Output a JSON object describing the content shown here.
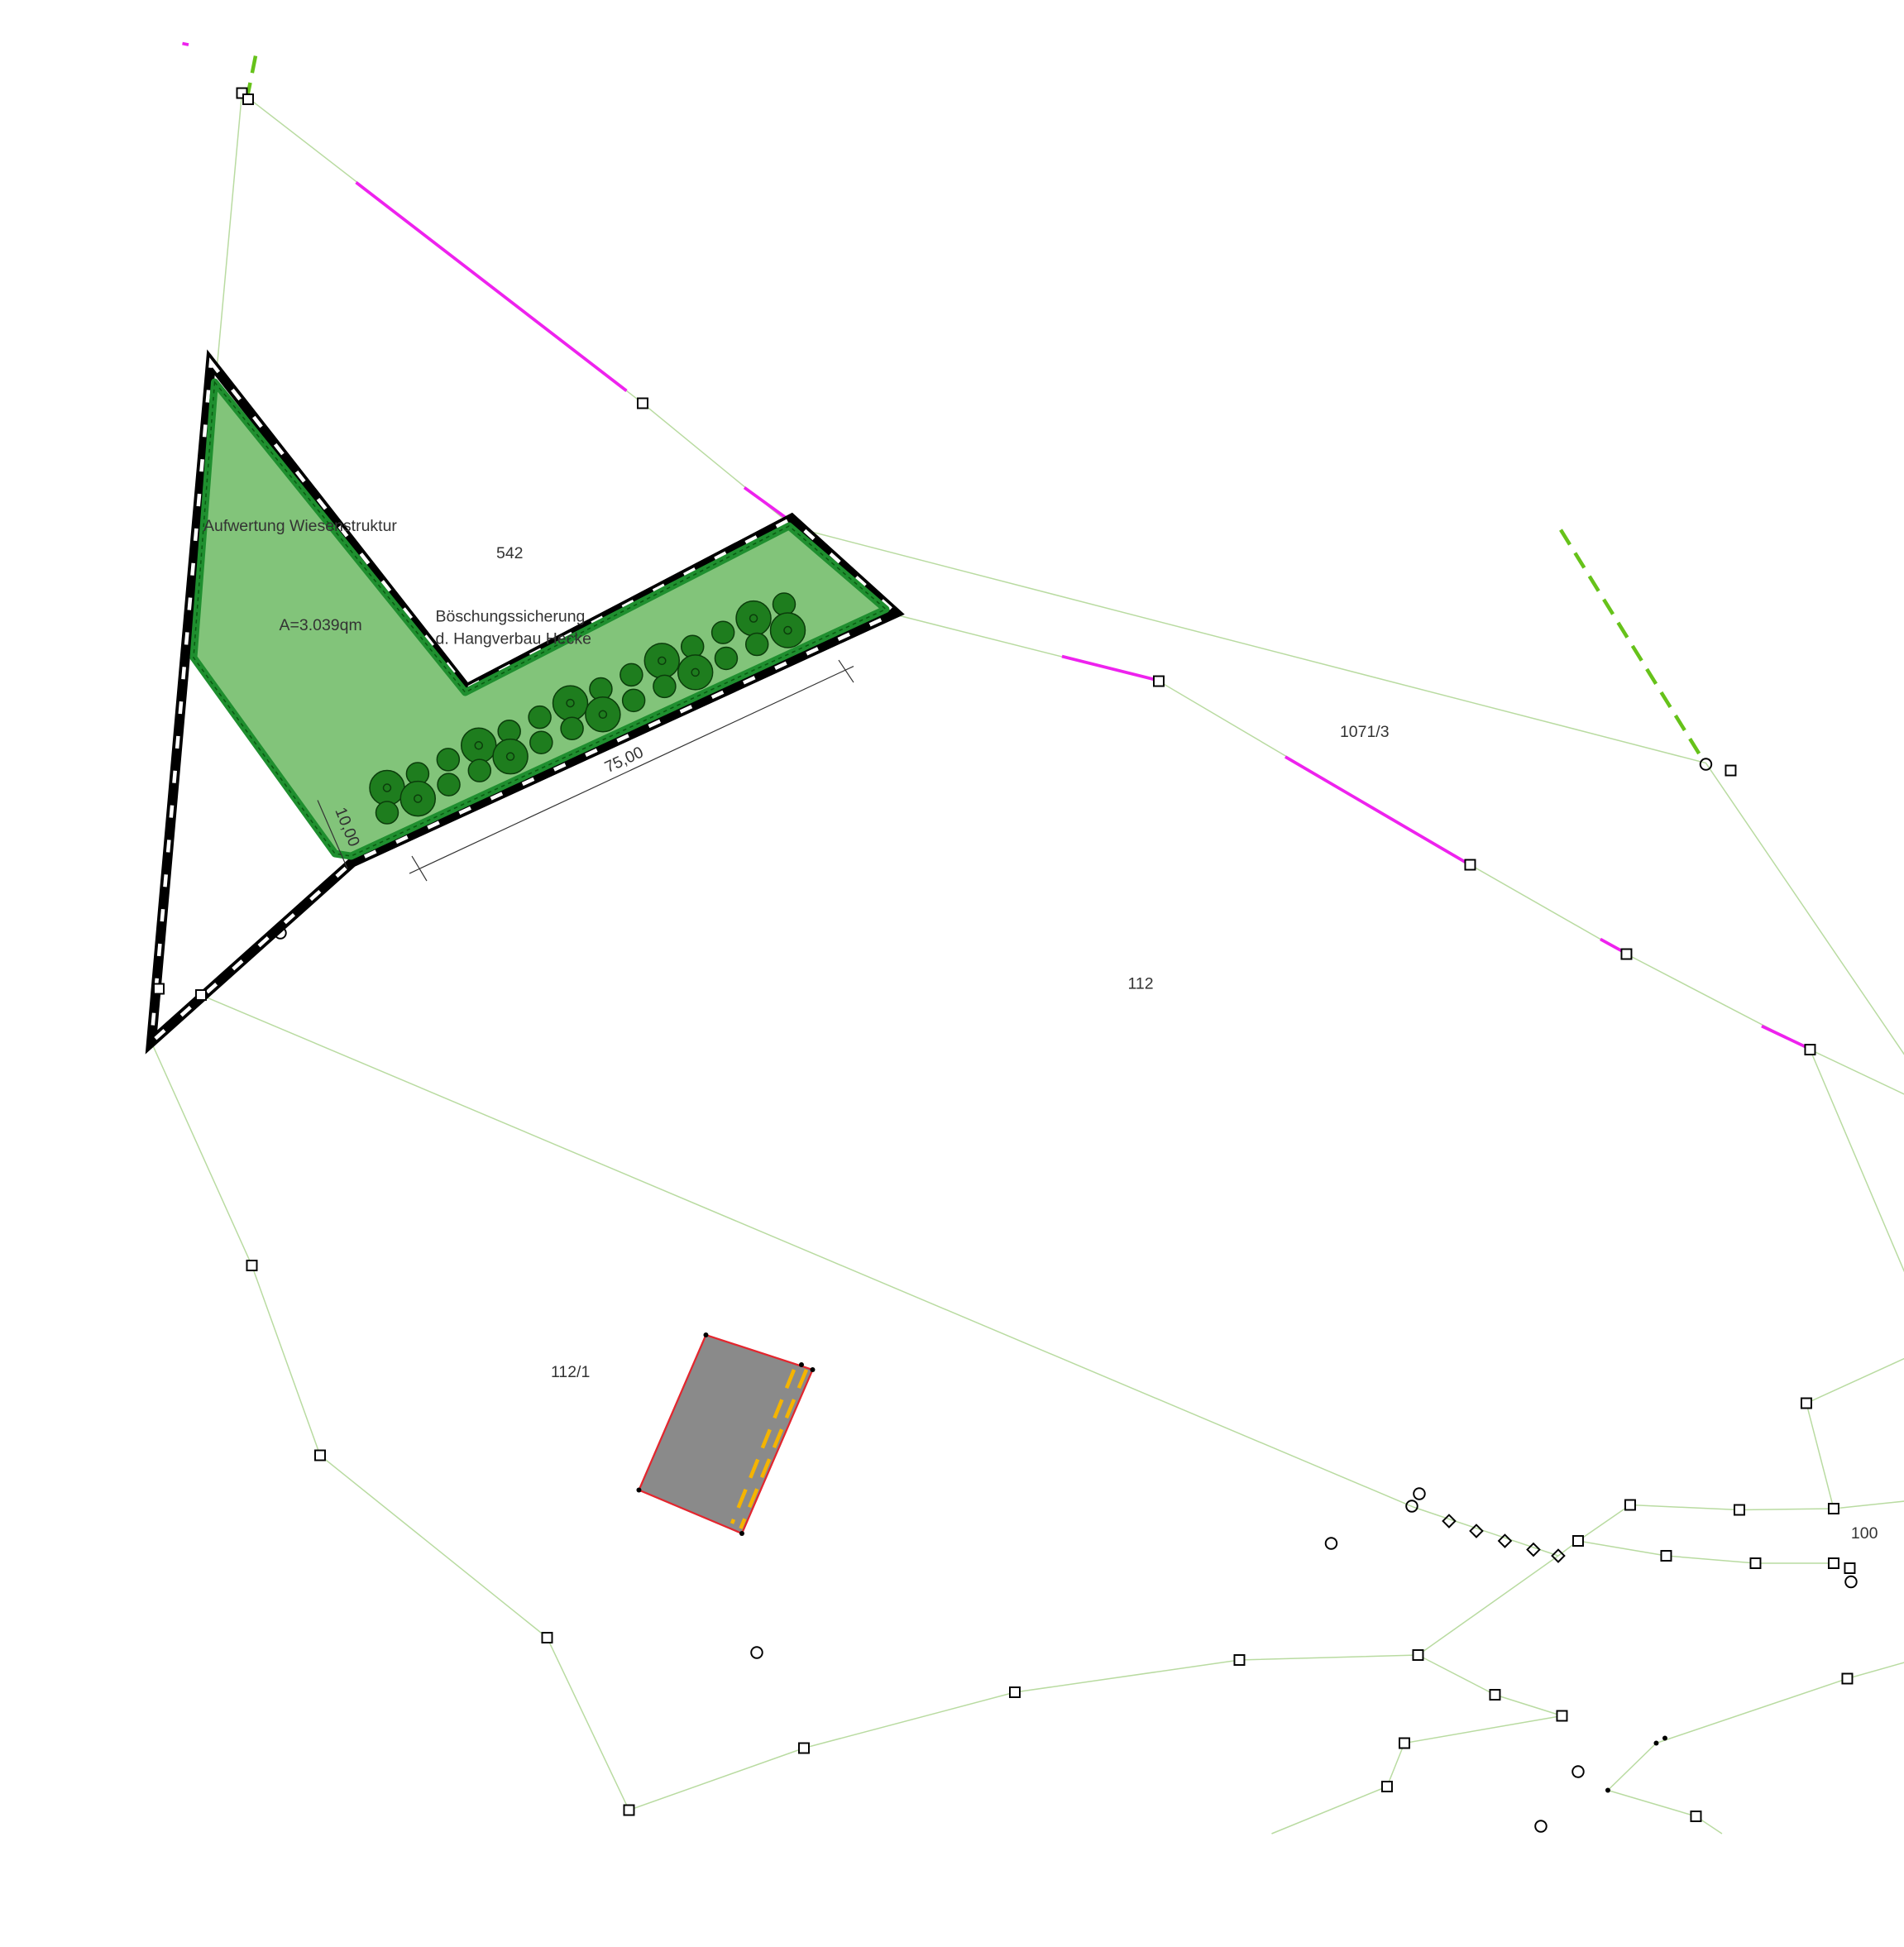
{
  "labels": {
    "area_title": "Aufwertung Wiesenstruktur",
    "area_size": "A=3.039qm",
    "hedge_line1": "Böschungssicherung",
    "hedge_line2": "d. Hangverbau Hecke",
    "dimension_length": "75,00",
    "dimension_width": "10,00",
    "parcels": [
      "542",
      "1071/3",
      "112",
      "112/1",
      "100"
    ]
  }
}
